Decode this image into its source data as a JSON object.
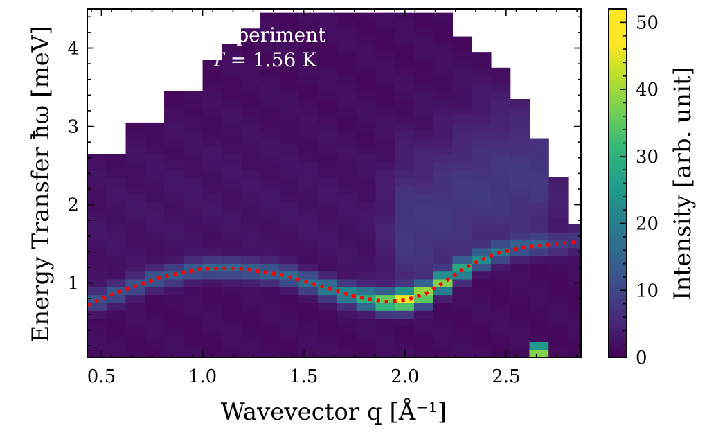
{
  "chart_data": {
    "type": "heatmap",
    "annotation": {
      "line1": "Experiment",
      "line2_symbol": "T",
      "line2_value": " = 1.56 K"
    },
    "xlabel": "Wavevector q [Å⁻¹]",
    "ylabel": "Energy Transfer ħω [meV]",
    "colorbar_label": "Intensity [arb. unit]",
    "colormap": "viridis",
    "xlim": [
      0.43,
      2.87
    ],
    "ylim": [
      0.05,
      4.5
    ],
    "clim": [
      0,
      52
    ],
    "x_ticks": [
      {
        "value": 0.5,
        "label": "0.5"
      },
      {
        "value": 1.0,
        "label": "1.0"
      },
      {
        "value": 1.5,
        "label": "1.5"
      },
      {
        "value": 2.0,
        "label": "2.0"
      },
      {
        "value": 2.5,
        "label": "2.5"
      }
    ],
    "y_ticks": [
      {
        "value": 1,
        "label": "1"
      },
      {
        "value": 2,
        "label": "2"
      },
      {
        "value": 3,
        "label": "3"
      },
      {
        "value": 4,
        "label": "4"
      }
    ],
    "colorbar_ticks": [
      {
        "value": 0,
        "label": "0"
      },
      {
        "value": 10,
        "label": "10"
      },
      {
        "value": 20,
        "label": "20"
      },
      {
        "value": 30,
        "label": "30"
      },
      {
        "value": 40,
        "label": "40"
      },
      {
        "value": 50,
        "label": "50"
      }
    ],
    "grid": {
      "q_start": 0.43,
      "q_step": 0.095,
      "n_q": 26,
      "e_start": 0.05,
      "e_step": 0.1,
      "n_e": 45
    },
    "column_top_energy": [
      2.65,
      2.65,
      3.12,
      3.12,
      3.5,
      3.5,
      3.9,
      4.1,
      4.3,
      4.5,
      4.5,
      4.5,
      4.5,
      4.5,
      4.5,
      4.5,
      4.5,
      4.5,
      4.5,
      4.2,
      4.0,
      3.75,
      3.4,
      2.9,
      2.35,
      1.75
    ],
    "excitation": {
      "description": "dispersive mode intensity peaks along q",
      "peak_q": [
        0.5,
        1.0,
        1.5,
        1.75,
        1.9,
        2.0,
        2.1,
        2.25,
        2.4,
        2.8
      ],
      "peak_intensity": [
        12,
        14,
        16,
        26,
        40,
        52,
        44,
        32,
        18,
        8
      ]
    },
    "elastic_spot": {
      "q": 2.63,
      "energy": [
        0.1,
        0.2
      ],
      "intensity": [
        42,
        28
      ]
    },
    "dispersion_fit": {
      "style": "dotted",
      "color": "#ff0000",
      "q": [
        0.43,
        0.6,
        0.8,
        1.0,
        1.1,
        1.2,
        1.4,
        1.6,
        1.75,
        1.9,
        2.0,
        2.1,
        2.2,
        2.3,
        2.45,
        2.6,
        2.75,
        2.87
      ],
      "energy": [
        0.72,
        0.9,
        1.08,
        1.18,
        1.19,
        1.18,
        1.1,
        0.95,
        0.83,
        0.76,
        0.78,
        0.86,
        1.02,
        1.2,
        1.38,
        1.46,
        1.5,
        1.53
      ]
    }
  }
}
